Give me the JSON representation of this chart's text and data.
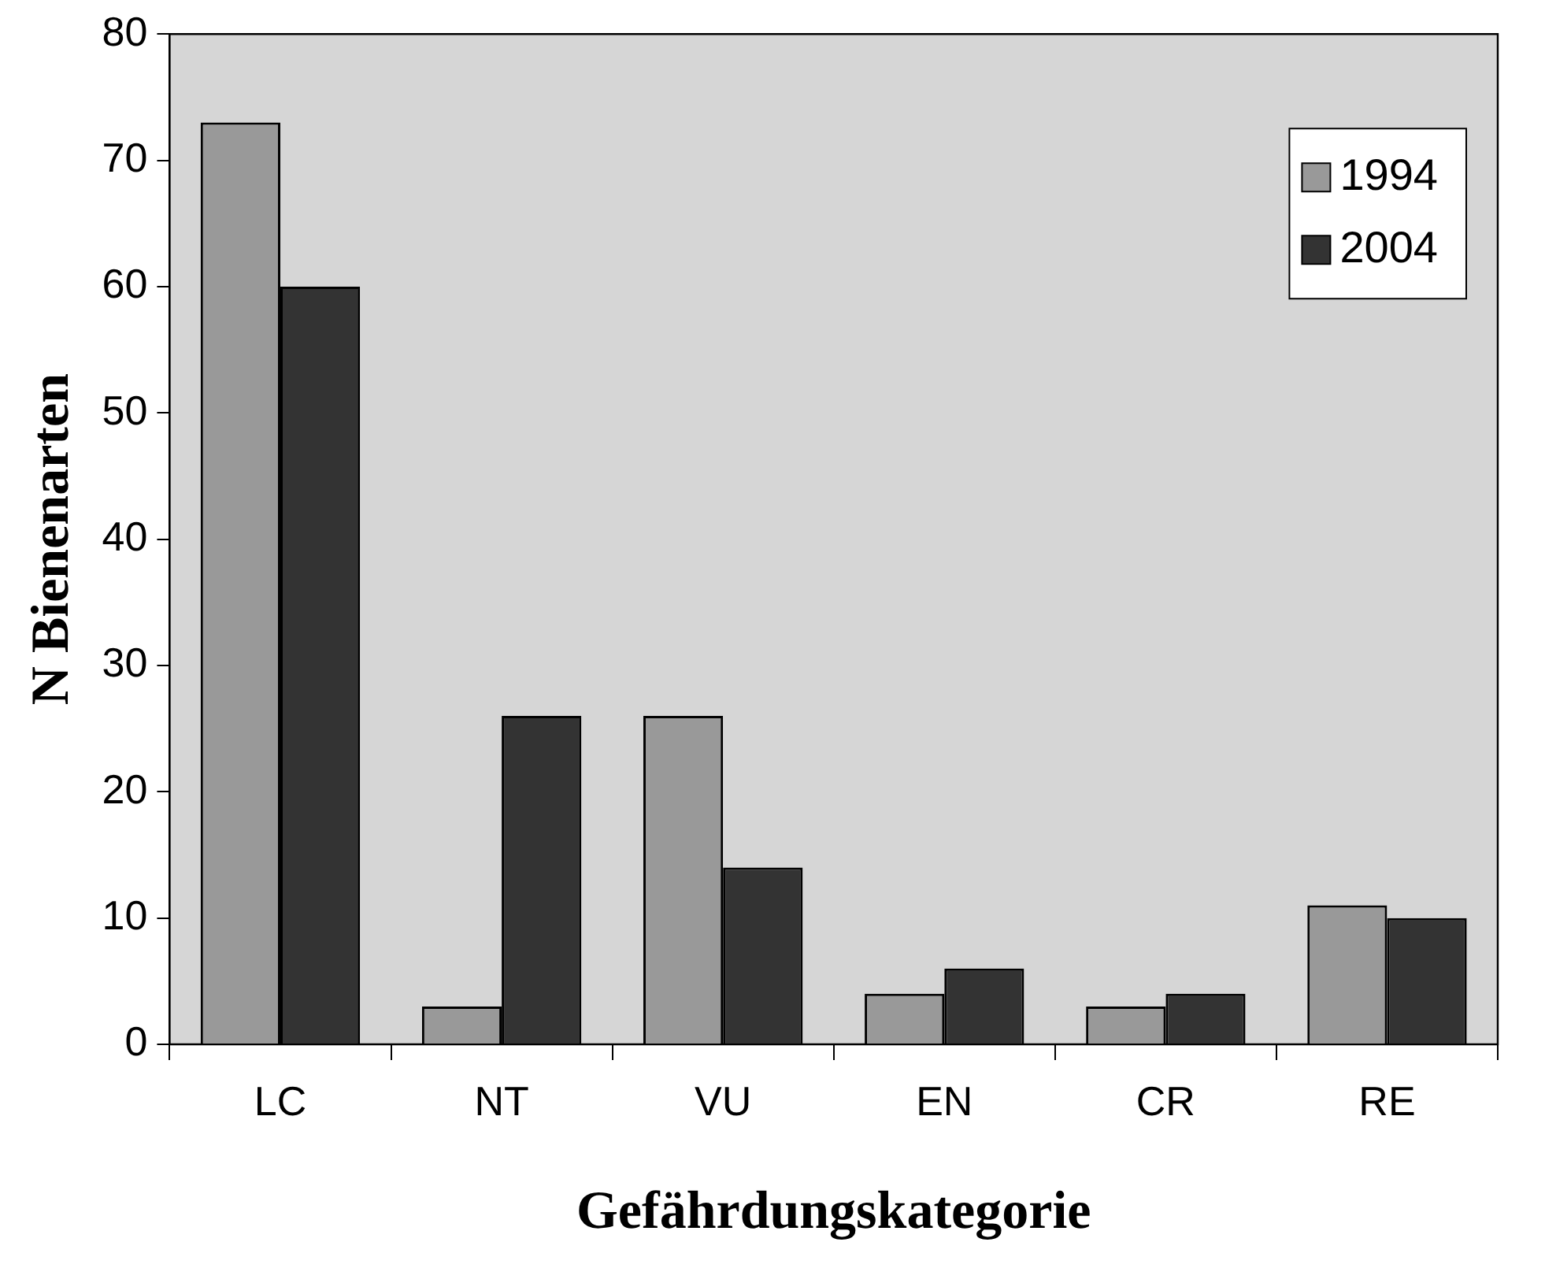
{
  "chart_data": {
    "type": "bar",
    "xlabel": "Gefährdungskategorie",
    "ylabel": "N Bienenarten",
    "categories": [
      "LC",
      "NT",
      "VU",
      "EN",
      "CR",
      "RE"
    ],
    "series": [
      {
        "name": "1994",
        "color": "#999999",
        "values": [
          73,
          3,
          26,
          4,
          3,
          11
        ]
      },
      {
        "name": "2004",
        "color": "#333333",
        "values": [
          60,
          26,
          14,
          6,
          4,
          10
        ]
      }
    ],
    "ylim": [
      0,
      80
    ],
    "yticks": [
      0,
      10,
      20,
      30,
      40,
      50,
      60,
      70,
      80
    ],
    "grid": false,
    "legend": "top right"
  }
}
